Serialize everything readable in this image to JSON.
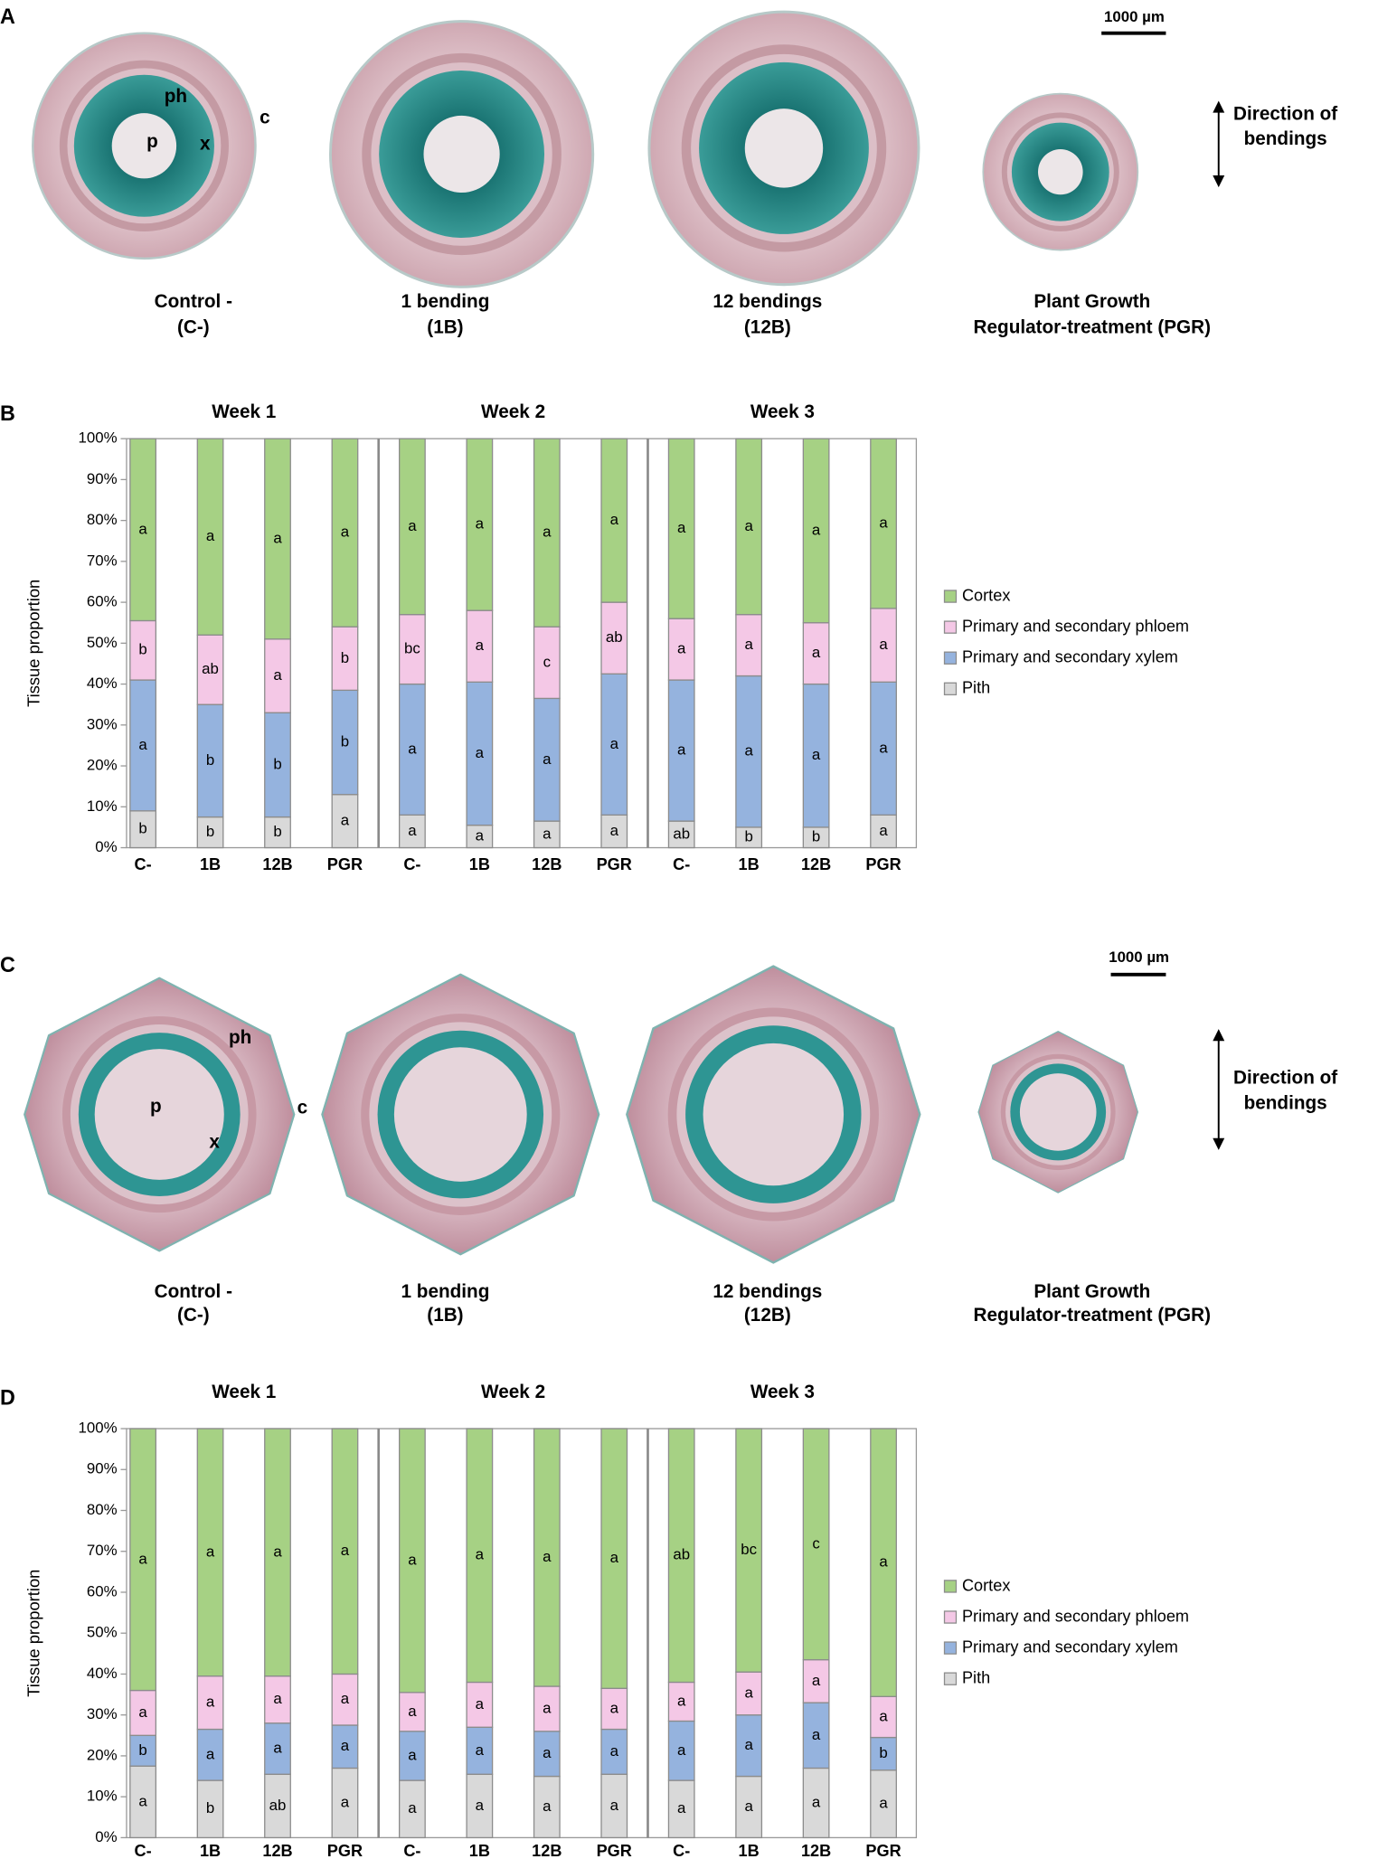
{
  "panels": [
    {
      "label": "A",
      "scale_bar": "1000 µm",
      "direction": [
        "Direction of",
        "bendings"
      ],
      "tissue_labels": [
        "ph",
        "c",
        "p",
        "x"
      ],
      "captions": [
        [
          "Control -",
          "(C-)"
        ],
        [
          "1 bending",
          "(1B)"
        ],
        [
          "12 bendings",
          "(12B)"
        ],
        [
          "Plant Growth",
          "Regulator-treatment (PGR)"
        ]
      ]
    },
    {
      "label": "C",
      "scale_bar": "1000 µm",
      "direction": [
        "Direction of",
        "bendings"
      ],
      "tissue_labels": [
        "ph",
        "c",
        "p",
        "x"
      ],
      "captions": [
        [
          "Control -",
          "(C-)"
        ],
        [
          "1 bending",
          "(1B)"
        ],
        [
          "12 bendings",
          "(12B)"
        ],
        [
          "Plant Growth",
          "Regulator-treatment (PGR)"
        ]
      ]
    }
  ],
  "chart_data": [
    {
      "type": "bar",
      "stacked": true,
      "label": "B",
      "ylabel": "Tissue proportion",
      "groups": [
        "Week 1",
        "Week 2",
        "Week 3"
      ],
      "categories": [
        "C-",
        "1B",
        "12B",
        "PGR",
        "C-",
        "1B",
        "12B",
        "PGR",
        "C-",
        "1B",
        "12B",
        "PGR"
      ],
      "ylim": [
        0,
        100
      ],
      "yticks": [
        {
          "value": 0,
          "label": "0%"
        },
        {
          "value": 10,
          "label": "10%"
        },
        {
          "value": 20,
          "label": "20%"
        },
        {
          "value": 30,
          "label": "30%"
        },
        {
          "value": 40,
          "label": "40%"
        },
        {
          "value": 50,
          "label": "50%"
        },
        {
          "value": 60,
          "label": "60%"
        },
        {
          "value": 70,
          "label": "70%"
        },
        {
          "value": 80,
          "label": "80%"
        },
        {
          "value": 90,
          "label": "90%"
        },
        {
          "value": 100,
          "label": "100%"
        }
      ],
      "series": [
        {
          "name": "Pith",
          "color": "#d9d9d9",
          "values": [
            9,
            7.5,
            7.5,
            13,
            8,
            5.5,
            6.5,
            8,
            6.5,
            5,
            5,
            8
          ],
          "letters": [
            "b",
            "b",
            "b",
            "a",
            "a",
            "a",
            "a",
            "a",
            "ab",
            "b",
            "b",
            "a"
          ]
        },
        {
          "name": "Primary and secondary xylem",
          "color": "#95b3de",
          "values": [
            32,
            27.5,
            25.5,
            25.5,
            32,
            35,
            30,
            34.5,
            34.5,
            37,
            35,
            32.5
          ],
          "letters": [
            "a",
            "b",
            "b",
            "b",
            "a",
            "a",
            "a",
            "a",
            "a",
            "a",
            "a",
            "a"
          ]
        },
        {
          "name": "Primary and secondary phloem",
          "color": "#f4c8e6",
          "values": [
            14.5,
            17,
            18,
            15.5,
            17,
            17.5,
            17.5,
            17.5,
            15,
            15,
            15,
            18
          ],
          "letters": [
            "b",
            "ab",
            "a",
            "b",
            "bc",
            "a",
            "c",
            "ab",
            "a",
            "a",
            "a",
            "a"
          ]
        },
        {
          "name": "Cortex",
          "color": "#a6d184",
          "values": [
            44.5,
            48,
            49,
            46,
            43,
            42,
            46,
            40,
            44,
            43,
            45,
            41.5
          ],
          "letters": [
            "a",
            "a",
            "a",
            "a",
            "a",
            "a",
            "a",
            "a",
            "a",
            "a",
            "a",
            "a"
          ]
        }
      ]
    },
    {
      "type": "bar",
      "stacked": true,
      "label": "D",
      "ylabel": "Tissue proportion",
      "groups": [
        "Week 1",
        "Week 2",
        "Week 3"
      ],
      "categories": [
        "C-",
        "1B",
        "12B",
        "PGR",
        "C-",
        "1B",
        "12B",
        "PGR",
        "C-",
        "1B",
        "12B",
        "PGR"
      ],
      "ylim": [
        0,
        100
      ],
      "yticks": [
        {
          "value": 0,
          "label": "0%"
        },
        {
          "value": 10,
          "label": "10%"
        },
        {
          "value": 20,
          "label": "20%"
        },
        {
          "value": 30,
          "label": "30%"
        },
        {
          "value": 40,
          "label": "40%"
        },
        {
          "value": 50,
          "label": "50%"
        },
        {
          "value": 60,
          "label": "60%"
        },
        {
          "value": 70,
          "label": "70%"
        },
        {
          "value": 80,
          "label": "80%"
        },
        {
          "value": 90,
          "label": "90%"
        },
        {
          "value": 100,
          "label": "100%"
        }
      ],
      "series": [
        {
          "name": "Pith",
          "color": "#d9d9d9",
          "values": [
            17.5,
            14,
            15.5,
            17,
            14,
            15.5,
            15,
            15.5,
            14,
            15,
            17,
            16.5
          ],
          "letters": [
            "a",
            "b",
            "ab",
            "a",
            "a",
            "a",
            "a",
            "a",
            "a",
            "a",
            "a",
            "a"
          ]
        },
        {
          "name": "Primary and secondary xylem",
          "color": "#95b3de",
          "values": [
            7.5,
            12.5,
            12.5,
            10.5,
            12,
            11.5,
            11,
            11,
            14.5,
            15,
            16,
            8
          ],
          "letters": [
            "b",
            "a",
            "a",
            "a",
            "a",
            "a",
            "a",
            "a",
            "a",
            "a",
            "a",
            "b"
          ]
        },
        {
          "name": "Primary and secondary phloem",
          "color": "#f4c8e6",
          "values": [
            11,
            13,
            11.5,
            12.5,
            9.5,
            11,
            11,
            10,
            9.5,
            10.5,
            10.5,
            10
          ],
          "letters": [
            "a",
            "a",
            "a",
            "a",
            "a",
            "a",
            "a",
            "a",
            "a",
            "a",
            "a",
            "a"
          ]
        },
        {
          "name": "Cortex",
          "color": "#a6d184",
          "values": [
            64,
            60.5,
            60.5,
            60,
            64.5,
            62,
            63,
            63.5,
            62,
            59.5,
            56.5,
            65.5
          ],
          "letters": [
            "a",
            "a",
            "a",
            "a",
            "a",
            "a",
            "a",
            "a",
            "ab",
            "bc",
            "c",
            "a"
          ]
        }
      ]
    }
  ]
}
